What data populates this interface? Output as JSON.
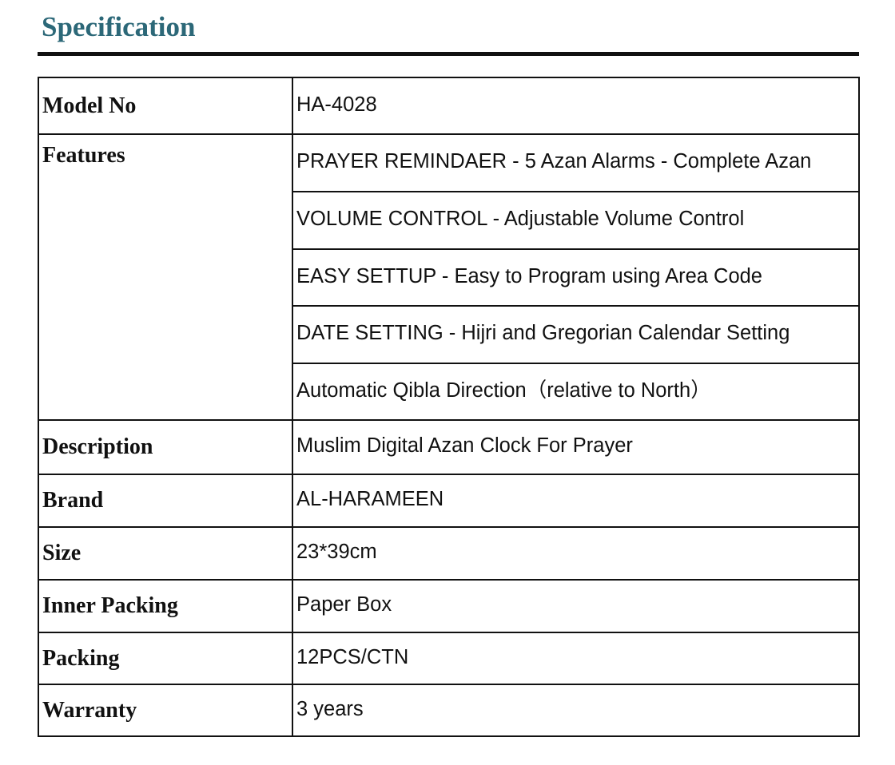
{
  "title": "Specification",
  "rows": [
    {
      "label": "Model No",
      "values": [
        "HA-4028"
      ]
    },
    {
      "label": "Features",
      "values": [
        "PRAYER REMINDAER - 5 Azan Alarms - Complete Azan",
        "VOLUME CONTROL - Adjustable Volume Control",
        "EASY SETTUP - Easy to  Program using Area Code",
        "DATE SETTING - Hijri and Gregorian Calendar Setting",
        "Automatic Qibla Direction（relative to North）"
      ]
    },
    {
      "label": "Description",
      "values": [
        "Muslim Digital Azan Clock For Prayer"
      ]
    },
    {
      "label": "Brand",
      "values": [
        "AL-HARAMEEN"
      ]
    },
    {
      "label": "Size",
      "values": [
        "23*39cm"
      ]
    },
    {
      "label": "Inner Packing",
      "values": [
        "Paper Box"
      ]
    },
    {
      "label": "Packing",
      "values": [
        "12PCS/CTN"
      ]
    },
    {
      "label": "Warranty",
      "values": [
        "3 years"
      ]
    }
  ]
}
